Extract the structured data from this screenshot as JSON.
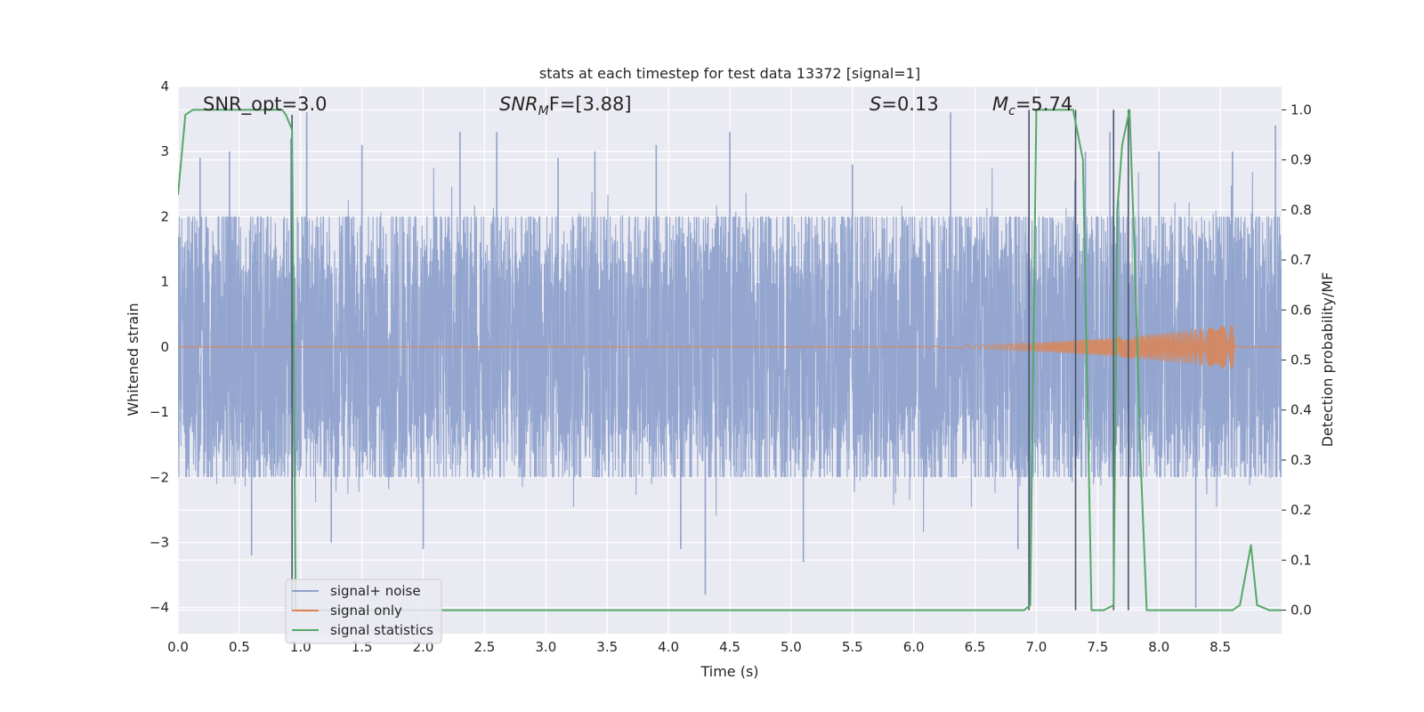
{
  "chart_data": {
    "type": "line",
    "title": "stats at each timestep for test data 13372 [signal=1]",
    "xlabel": "Time (s)",
    "ylabel": "Whitened strain",
    "ylabel_right": "Detection probability/MF",
    "xlim": [
      0.0,
      9.0
    ],
    "ylim": [
      -4.4,
      4.0
    ],
    "ylim_right": [
      -0.047,
      1.047
    ],
    "x_ticks": [
      "0.0",
      "0.5",
      "1.0",
      "1.5",
      "2.0",
      "2.5",
      "3.0",
      "3.5",
      "4.0",
      "4.5",
      "5.0",
      "5.5",
      "6.0",
      "6.5",
      "7.0",
      "7.5",
      "8.0",
      "8.5"
    ],
    "y_ticks_left": [
      "4",
      "3",
      "2",
      "1",
      "0",
      "−1",
      "−2",
      "−3",
      "−4"
    ],
    "y_ticks_right": [
      "1.0",
      "0.9",
      "0.8",
      "0.7",
      "0.6",
      "0.5",
      "0.4",
      "0.3",
      "0.2",
      "0.1",
      "0.0"
    ],
    "grid": true,
    "legend_position": "lower-left",
    "annotations": {
      "snr_opt": "SNR_opt=3.0",
      "snr_mf_main": "SNR",
      "snr_mf_sub": "M",
      "snr_mf_rest": "F=[3.88]",
      "s_main": "S",
      "s_rest": "=0.13",
      "mc_main": "M",
      "mc_sub": "c",
      "mc_rest": "=5.74"
    },
    "series": [
      {
        "name": "signal+ noise",
        "color": "#8fa2cc",
        "description_envelope_abs": 1.8,
        "peak_spikes": [
          [
            0.18,
            2.9
          ],
          [
            0.42,
            3.0
          ],
          [
            0.6,
            -3.2
          ],
          [
            0.92,
            3.2
          ],
          [
            1.05,
            3.6
          ],
          [
            1.25,
            -3.0
          ],
          [
            1.5,
            3.1
          ],
          [
            2.0,
            -3.1
          ],
          [
            2.3,
            3.3
          ],
          [
            2.6,
            3.3
          ],
          [
            3.1,
            2.9
          ],
          [
            3.4,
            3.0
          ],
          [
            3.9,
            3.1
          ],
          [
            4.1,
            -3.1
          ],
          [
            4.3,
            -3.8
          ],
          [
            4.5,
            3.3
          ],
          [
            5.1,
            -3.3
          ],
          [
            5.5,
            2.8
          ],
          [
            6.3,
            3.6
          ],
          [
            6.85,
            -3.1
          ],
          [
            6.95,
            -3.6
          ],
          [
            7.4,
            3.0
          ],
          [
            7.6,
            3.3
          ],
          [
            8.0,
            3.0
          ],
          [
            8.3,
            -4.0
          ],
          [
            8.6,
            3.0
          ],
          [
            8.95,
            3.4
          ]
        ]
      },
      {
        "name": "signal only",
        "color": "#dd8452",
        "chirp": {
          "start": 5.5,
          "end": 8.62,
          "peak_amplitude": 0.35
        }
      },
      {
        "name": "signal statistics",
        "color": "#55a868",
        "x": [
          0.0,
          0.06,
          0.12,
          0.2,
          0.3,
          0.4,
          0.5,
          0.6,
          0.7,
          0.8,
          0.85,
          0.88,
          0.93,
          0.96,
          1.0,
          2.0,
          3.0,
          4.0,
          5.0,
          6.0,
          6.5,
          6.9,
          6.95,
          7.0,
          7.1,
          7.2,
          7.3,
          7.38,
          7.45,
          7.55,
          7.63,
          7.66,
          7.7,
          7.76,
          7.8,
          7.85,
          7.9,
          8.0,
          8.3,
          8.6,
          8.66,
          8.75,
          8.8,
          8.9,
          9.0
        ],
        "y": [
          0.83,
          0.99,
          1.0,
          1.0,
          1.0,
          1.0,
          1.0,
          1.0,
          1.0,
          1.0,
          1.0,
          0.99,
          0.96,
          0.0,
          0.0,
          0.0,
          0.0,
          0.0,
          0.0,
          0.0,
          0.0,
          0.0,
          0.01,
          1.0,
          1.0,
          1.0,
          1.0,
          0.9,
          0.0,
          0.0,
          0.01,
          0.8,
          0.93,
          1.0,
          0.72,
          0.3,
          0.0,
          0.0,
          0.0,
          0.0,
          0.01,
          0.13,
          0.01,
          0.0,
          0.0
        ]
      }
    ],
    "vertical_markers": [
      {
        "x": 0.93,
        "y_top": 0.99,
        "y_bottom": 0.0
      },
      {
        "x": 6.94,
        "y_top": 1.0,
        "y_bottom": 0.0
      },
      {
        "x": 7.32,
        "y_top": 1.0,
        "y_bottom": 0.0
      },
      {
        "x": 7.63,
        "y_top": 1.0,
        "y_bottom": 0.0
      },
      {
        "x": 7.75,
        "y_top": 1.0,
        "y_bottom": 0.0
      }
    ]
  },
  "colors": {
    "axes_background": "#eaeaf2",
    "grid": "#ffffff",
    "marker_line": "#4a5568"
  }
}
